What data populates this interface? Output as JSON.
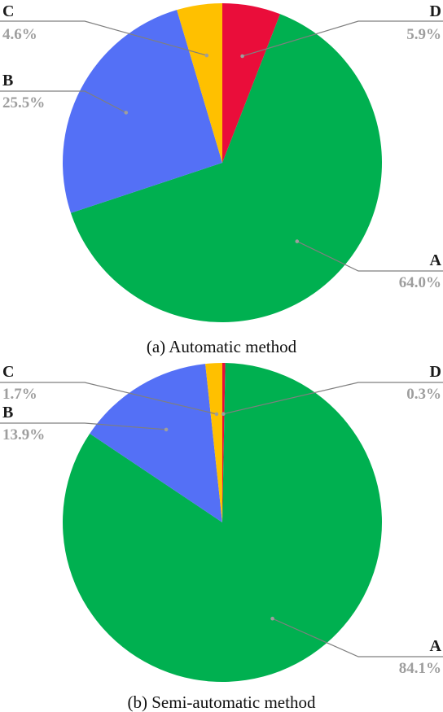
{
  "charts": [
    {
      "caption": "(a) Automatic method",
      "chart_data": {
        "type": "pie",
        "slices": [
          {
            "label": "D",
            "value": 5.9,
            "pct_text": "5.9%",
            "color": "#EA0D3A"
          },
          {
            "label": "A",
            "value": 64.0,
            "pct_text": "64.0%",
            "color": "#00B050"
          },
          {
            "label": "B",
            "value": 25.5,
            "pct_text": "25.5%",
            "color": "#5470F6"
          },
          {
            "label": "C",
            "value": 4.6,
            "pct_text": "4.6%",
            "color": "#FFC000"
          }
        ],
        "start": "12 o'clock",
        "direction": "clockwise"
      }
    },
    {
      "caption": "(b) Semi-automatic method",
      "chart_data": {
        "type": "pie",
        "slices": [
          {
            "label": "D",
            "value": 0.3,
            "pct_text": "0.3%",
            "color": "#EA0D3A"
          },
          {
            "label": "A",
            "value": 84.1,
            "pct_text": "84.1%",
            "color": "#00B050"
          },
          {
            "label": "B",
            "value": 13.9,
            "pct_text": "13.9%",
            "color": "#5470F6"
          },
          {
            "label": "C",
            "value": 1.7,
            "pct_text": "1.7%",
            "color": "#FFC000"
          }
        ],
        "start": "12 o'clock",
        "direction": "clockwise"
      }
    }
  ]
}
